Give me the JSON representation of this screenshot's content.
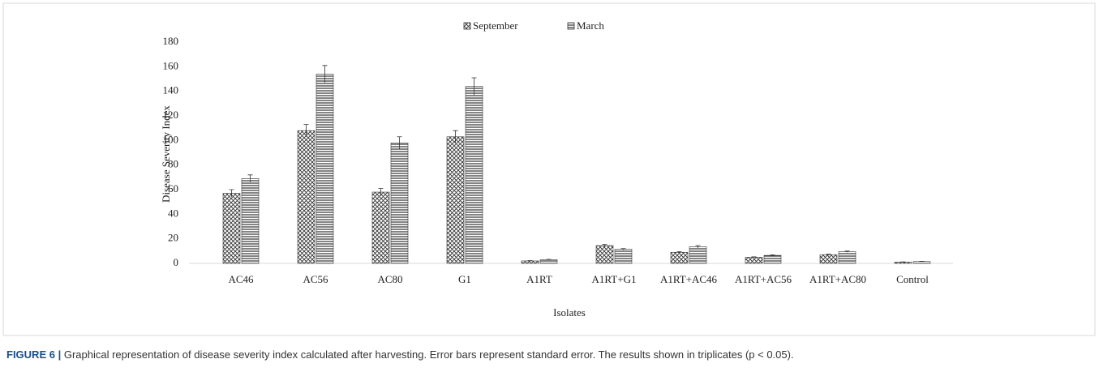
{
  "chart_data": {
    "type": "bar",
    "categories": [
      "AC46",
      "AC56",
      "AC80",
      "G1",
      "A1RT",
      "A1RT+G1",
      "A1RT+AC46",
      "A1RT+AC56",
      "A1RT+AC80",
      "Control"
    ],
    "series": [
      {
        "name": "September",
        "color": "#333333",
        "pattern": "crosshatch",
        "values": [
          57,
          108,
          58,
          103,
          2,
          14.5,
          9,
          5,
          7,
          1
        ],
        "errors": [
          3,
          5,
          3,
          5,
          0.3,
          1,
          0.5,
          0.3,
          0.5,
          0.2
        ]
      },
      {
        "name": "March",
        "color": "#333333",
        "pattern": "horizontal",
        "values": [
          69,
          154,
          98,
          144,
          3,
          11.5,
          13.5,
          6.5,
          9.5,
          1.5
        ],
        "errors": [
          3,
          7,
          5,
          7,
          0.3,
          0.5,
          1,
          0.5,
          0.5,
          0.2
        ]
      }
    ],
    "ylim": [
      0,
      180
    ],
    "yticks": [
      0,
      20,
      40,
      60,
      80,
      100,
      120,
      140,
      160,
      180
    ],
    "ylabel": "Disease Severity Index",
    "xlabel": "Isolates",
    "legend": "top"
  },
  "caption": {
    "label": "FIGURE 6 |",
    "text": "Graphical representation of disease severity index calculated after harvesting. Error bars represent standard error. The results shown in triplicates (p < 0.05)."
  }
}
